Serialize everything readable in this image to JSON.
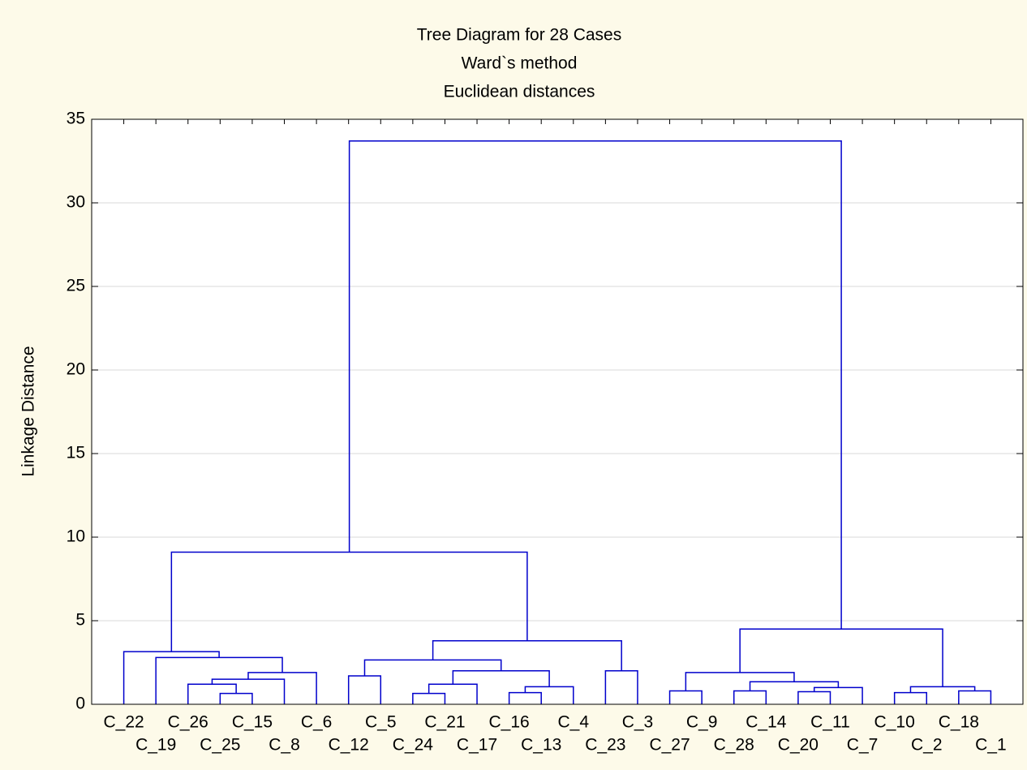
{
  "chart_data": {
    "type": "dendrogram",
    "title": "Tree Diagram for 28 Cases",
    "subtitle": [
      "Ward`s method",
      "Euclidean distances"
    ],
    "ylabel": "Linkage Distance",
    "ylim": [
      0,
      35
    ],
    "yticks": [
      0,
      5,
      10,
      15,
      20,
      25,
      30,
      35
    ],
    "grid": true,
    "color": "#0000cc",
    "tree": {
      "height": 33.7,
      "children": [
        {
          "height": 9.1,
          "children": [
            {
              "height": 3.15,
              "children": [
                {
                  "label": "C_22"
                },
                {
                  "height": 2.8,
                  "children": [
                    {
                      "label": "C_19"
                    },
                    {
                      "height": 1.9,
                      "children": [
                        {
                          "height": 1.5,
                          "children": [
                            {
                              "height": 1.2,
                              "children": [
                                {
                                  "label": "C_26"
                                },
                                {
                                  "height": 0.65,
                                  "children": [
                                    {
                                      "label": "C_25"
                                    },
                                    {
                                      "label": "C_15"
                                    }
                                  ]
                                }
                              ]
                            },
                            {
                              "label": "C_8"
                            }
                          ]
                        },
                        {
                          "label": "C_6"
                        }
                      ]
                    }
                  ]
                }
              ]
            },
            {
              "height": 3.8,
              "children": [
                {
                  "height": 2.65,
                  "children": [
                    {
                      "height": 1.7,
                      "children": [
                        {
                          "label": "C_12"
                        },
                        {
                          "label": "C_5"
                        }
                      ]
                    },
                    {
                      "height": 2.0,
                      "children": [
                        {
                          "height": 1.2,
                          "children": [
                            {
                              "height": 0.65,
                              "children": [
                                {
                                  "label": "C_24"
                                },
                                {
                                  "label": "C_21"
                                }
                              ]
                            },
                            {
                              "label": "C_17"
                            }
                          ]
                        },
                        {
                          "height": 1.05,
                          "children": [
                            {
                              "height": 0.7,
                              "children": [
                                {
                                  "label": "C_16"
                                },
                                {
                                  "label": "C_13"
                                }
                              ]
                            },
                            {
                              "label": "C_4"
                            }
                          ]
                        }
                      ]
                    }
                  ]
                },
                {
                  "height": 2.0,
                  "children": [
                    {
                      "label": "C_23"
                    },
                    {
                      "label": "C_3"
                    }
                  ]
                }
              ]
            }
          ]
        },
        {
          "height": 4.5,
          "children": [
            {
              "height": 1.9,
              "children": [
                {
                  "height": 0.8,
                  "children": [
                    {
                      "label": "C_27"
                    },
                    {
                      "label": "C_9"
                    }
                  ]
                },
                {
                  "height": 1.35,
                  "children": [
                    {
                      "height": 0.8,
                      "children": [
                        {
                          "label": "C_28"
                        },
                        {
                          "label": "C_14"
                        }
                      ]
                    },
                    {
                      "height": 1.0,
                      "children": [
                        {
                          "height": 0.75,
                          "children": [
                            {
                              "label": "C_20"
                            },
                            {
                              "label": "C_11"
                            }
                          ]
                        },
                        {
                          "label": "C_7"
                        }
                      ]
                    }
                  ]
                }
              ]
            },
            {
              "height": 1.05,
              "children": [
                {
                  "height": 0.7,
                  "children": [
                    {
                      "label": "C_10"
                    },
                    {
                      "label": "C_2"
                    }
                  ]
                },
                {
                  "height": 0.8,
                  "children": [
                    {
                      "label": "C_18"
                    },
                    {
                      "label": "C_1"
                    }
                  ]
                }
              ]
            }
          ]
        }
      ]
    }
  }
}
